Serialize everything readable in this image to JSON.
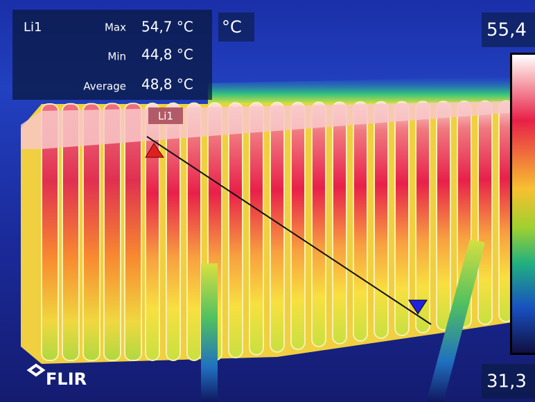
{
  "measurement": {
    "label": "Li1",
    "max_label": "Max",
    "max": "54,7 °C",
    "min_label": "Min",
    "min": "44,8 °C",
    "average_label": "Average",
    "average": "48,8 °C"
  },
  "unit": "°C",
  "scale": {
    "top": "55,4",
    "bottom": "31,3"
  },
  "line_tool": {
    "label": "Li1"
  },
  "logo": "FLIR"
}
